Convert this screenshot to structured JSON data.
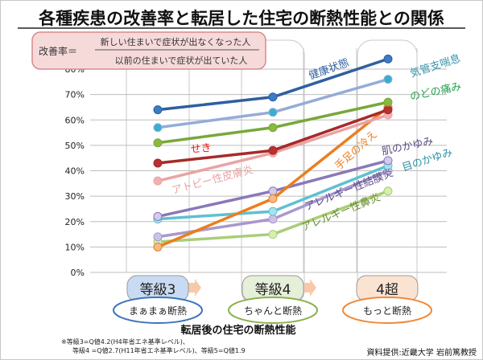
{
  "title": "各種疾患の改善率と転居した住宅の断熱性能との関係",
  "formula": {
    "label": "改善率＝",
    "numerator": "新しい住まいで症状が出なくなった人",
    "denominator": "以前の住まいで症状が出ていた人"
  },
  "chart_data": {
    "type": "line",
    "title": "各種疾患の改善率と転居した住宅の断熱性能との関係",
    "xlabel": "転居後の住宅の断熱性能",
    "ylabel": "",
    "ylim": [
      0,
      80
    ],
    "yticks": [
      "0%",
      "10%",
      "20%",
      "30%",
      "40%",
      "50%",
      "60%",
      "70%",
      "80%"
    ],
    "grid": true,
    "categories": [
      "等級3",
      "等級4",
      "4超"
    ],
    "category_sublabels": [
      "まぁまぁ断熱",
      "ちゃんと断熱",
      "もっと断熱"
    ],
    "category_colors": [
      "#c9dbf2",
      "#e6efd9",
      "#fbe3d2"
    ],
    "sublabel_colors": [
      "#3f74b8",
      "#8cb050",
      "#f08a3a"
    ],
    "series": [
      {
        "name": "健康状態",
        "values": [
          64,
          69,
          84
        ],
        "color": "#2e5fa0",
        "marker": "#3b7bc8",
        "label_color": "#2e5fa0"
      },
      {
        "name": "気管支喘息",
        "values": [
          57,
          63,
          76
        ],
        "color": "#95acd8",
        "marker": "#35b0cc",
        "label_color": "#3a93ac"
      },
      {
        "name": "のどの痛み",
        "values": [
          51,
          57,
          67
        ],
        "color": "#78a83a",
        "marker": "#8ab840",
        "label_color": "#20a048"
      },
      {
        "name": "せき",
        "values": [
          43,
          48,
          64
        ],
        "color": "#a62a2a",
        "marker": "#b83030",
        "label_color": "#e01818"
      },
      {
        "name": "アトピー性皮膚炎",
        "values": [
          36,
          47,
          62
        ],
        "color": "#eba3a3",
        "marker": "#f2b0b0",
        "label_color": "#eba3a3"
      },
      {
        "name": "手足の冷え",
        "values": [
          10,
          29,
          65
        ],
        "color": "#ea7f1e",
        "marker": "#f5b98a",
        "label_color": "#ea7f1e"
      },
      {
        "name": "肌のかゆみ",
        "values": [
          22,
          32,
          44
        ],
        "color": "#8a78b8",
        "marker": "#d4cbeb",
        "label_color": "#5a4a80"
      },
      {
        "name": "目のかゆみ",
        "values": [
          21,
          24,
          42
        ],
        "color": "#5fc0d2",
        "marker": "#a8e2ec",
        "label_color": "#2f8fa8"
      },
      {
        "name": "アレルギー性結膜炎",
        "values": [
          14,
          21,
          40
        ],
        "color": "#a898cc",
        "marker": "#ccc2e6",
        "label_color": "#5a4a8a"
      },
      {
        "name": "アレルギー性鼻炎",
        "values": [
          12,
          15,
          32
        ],
        "color": "#aacd78",
        "marker": "#d6eeae",
        "label_color": "#6a8a30"
      }
    ]
  },
  "footnote": [
    "※等級3=Q値4.2(H4年省エネ基準レベル)、",
    "等級4 =Q値2.7(H11年省エネ基準レベル)、等級5=Q値1.9"
  ],
  "source": "資料提供:近畿大学 岩前篤教授"
}
